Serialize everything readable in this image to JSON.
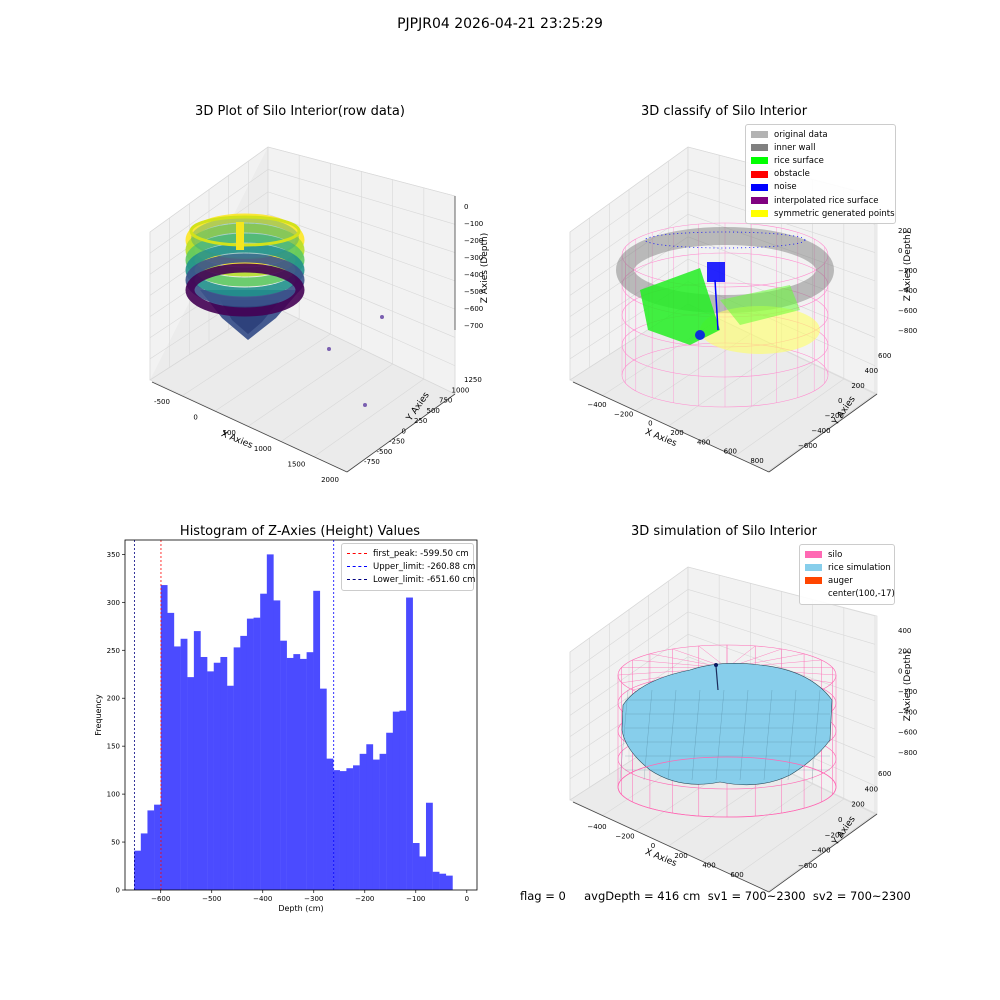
{
  "suptitle": "PJPJR04 2026-04-21 23:25:29",
  "panel1": {
    "title": "3D Plot of Silo Interior(row data)",
    "xlabel": "X Axies",
    "ylabel": "Y Axies",
    "zlabel": "Z Axies (Depth)",
    "xticks": [
      "-500",
      "0",
      "500",
      "1000",
      "1500",
      "2000"
    ],
    "yticks": [
      "-750",
      "-500",
      "-250",
      "0",
      "250",
      "500",
      "750",
      "1000",
      "1250"
    ],
    "zticks": [
      "0",
      "−100",
      "−200",
      "−300",
      "−400",
      "−500",
      "−600",
      "−700"
    ]
  },
  "panel2": {
    "title": "3D classify of Silo Interior",
    "xlabel": "X Axies",
    "ylabel": "Y Axies",
    "zlabel": "Z Axies (Depth)",
    "xticks": [
      "−400",
      "−200",
      "0",
      "200",
      "400",
      "600",
      "800"
    ],
    "yticks": [
      "−600",
      "−400",
      "−200",
      "0",
      "200",
      "400",
      "600"
    ],
    "zticks": [
      "200",
      "0",
      "−200",
      "−400",
      "−600",
      "−800"
    ],
    "legend": [
      {
        "label": "original data",
        "color": "#b3b3b3"
      },
      {
        "label": "inner wall",
        "color": "#808080"
      },
      {
        "label": "rice surface",
        "color": "#00ff00"
      },
      {
        "label": "obstacle",
        "color": "#ff0000"
      },
      {
        "label": "noise",
        "color": "#0000ff"
      },
      {
        "label": "interpolated rice surface",
        "color": "#800080"
      },
      {
        "label": "symmetric generated points",
        "color": "#ffff00"
      }
    ]
  },
  "panel4": {
    "title": "3D simulation of Silo Interior",
    "xlabel": "X Axies",
    "ylabel": "Y Axies",
    "zlabel": "Z Axies (Depth)",
    "xticks": [
      "−400",
      "−200",
      "0",
      "200",
      "400",
      "600"
    ],
    "yticks": [
      "−600",
      "−400",
      "−200",
      "0",
      "200",
      "400",
      "600"
    ],
    "zticks": [
      "400",
      "200",
      "0",
      "−200",
      "−400",
      "−600",
      "−800"
    ],
    "legend": [
      {
        "label": "silo",
        "color": "#ff69b4"
      },
      {
        "label": "rice simulation",
        "color": "#87ceeb"
      },
      {
        "label": "auger",
        "color": "#ff4500"
      },
      {
        "label": "center(100,-17)",
        "color": ""
      }
    ]
  },
  "footer": {
    "text": "flag = 0     avgDepth = 416 cm  sv1 = 700~2300  sv2 = 700~2300"
  },
  "chart_data": [
    {
      "type": "scatter",
      "title": "3D Plot of Silo Interior(row data)",
      "xlabel": "X Axies",
      "ylabel": "Y Axies",
      "zlabel": "Z Axies (Depth)",
      "xlim": [
        -700,
        2100
      ],
      "ylim": [
        -750,
        1400
      ],
      "zlim": [
        -800,
        0
      ],
      "colormap": "viridis",
      "outlier_points": [
        {
          "x": 1000,
          "y": 1250,
          "z": -650
        },
        {
          "x": 1550,
          "y": 500,
          "z": -650
        },
        {
          "x": 1700,
          "y": 0,
          "z": -650
        }
      ]
    },
    {
      "type": "scatter",
      "title": "3D classify of Silo Interior",
      "xlabel": "X Axies",
      "ylabel": "Y Axies",
      "zlabel": "Z Axies (Depth)",
      "xlim": [
        -500,
        800
      ],
      "ylim": [
        -700,
        700
      ],
      "zlim": [
        -900,
        300
      ],
      "legend_position": "upper right"
    },
    {
      "type": "histogram",
      "title": "Histogram of Z-Axies (Height) Values",
      "xlabel": "Depth (cm)",
      "ylabel": "Frequency",
      "xlim": [
        -670,
        20
      ],
      "ylim": [
        0,
        365
      ],
      "xticks": [
        -600,
        -500,
        -400,
        -300,
        -200,
        -100,
        0
      ],
      "yticks": [
        0,
        50,
        100,
        150,
        200,
        250,
        300,
        350
      ],
      "bin_start": -652,
      "bin_width": 13,
      "values": [
        41,
        59,
        83,
        89,
        318,
        289,
        254,
        262,
        222,
        270,
        243,
        228,
        237,
        243,
        213,
        253,
        265,
        283,
        284,
        309,
        350,
        302,
        260,
        242,
        246,
        241,
        248,
        312,
        210,
        137,
        125,
        124,
        127,
        130,
        142,
        152,
        136,
        142,
        164,
        186,
        187,
        305,
        49,
        35,
        91,
        19,
        17,
        15
      ],
      "bar_color": "#4b4bff",
      "vlines": [
        {
          "label": "first_peak: -599.50 cm",
          "x": -599.5,
          "color": "#ff0000"
        },
        {
          "label": "Upper_limit: -260.88 cm",
          "x": -260.88,
          "color": "#0000ff"
        },
        {
          "label": "Lower_limit: -651.60 cm",
          "x": -651.6,
          "color": "#000080"
        }
      ],
      "legend_position": "upper right"
    },
    {
      "type": "surface",
      "title": "3D simulation of Silo Interior",
      "xlabel": "X Axies",
      "ylabel": "Y Axies",
      "zlabel": "Z Axies (Depth)",
      "xlim": [
        -500,
        700
      ],
      "ylim": [
        -700,
        700
      ],
      "zlim": [
        -900,
        450
      ],
      "center": [
        100,
        -17
      ],
      "legend_position": "upper right"
    }
  ]
}
